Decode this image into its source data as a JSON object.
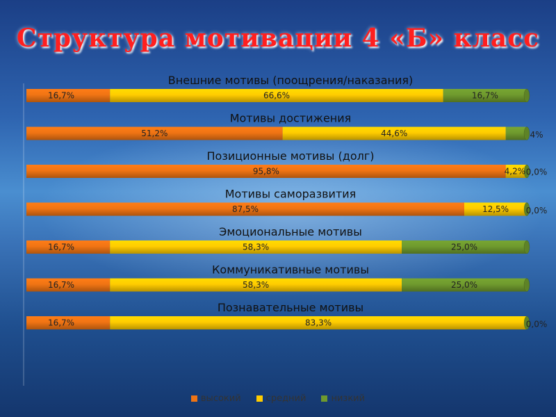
{
  "title": "Структура мотивации 4 «Б» класс",
  "colors": {
    "high": "#f07414",
    "mid": "#ffcc00",
    "low": "#6f9a2e"
  },
  "chart_data": {
    "type": "bar",
    "orientation": "horizontal",
    "stacked": true,
    "categories": [
      "Внешние мотивы (поощрения/наказания)",
      "Мотивы достижения",
      "Позиционные мотивы (долг)",
      "Мотивы саморазвития",
      "Эмоциональные мотивы",
      "Коммуникативные мотивы",
      "Познавательные мотивы"
    ],
    "series": [
      {
        "name": "высокий",
        "values": [
          16.7,
          51.2,
          95.8,
          87.5,
          16.7,
          16.7,
          16.7
        ],
        "labels": [
          "16,7%",
          "51,2%",
          "95,8%",
          "87,5%",
          "16,7%",
          "16,7%",
          "16,7%"
        ]
      },
      {
        "name": "средний",
        "values": [
          66.6,
          44.6,
          4.2,
          12.5,
          58.3,
          58.3,
          83.3
        ],
        "labels": [
          "66,6%",
          "44,6%",
          "4,2%",
          "12,5%",
          "58,3%",
          "58,3%",
          "83,3%"
        ]
      },
      {
        "name": "низкий",
        "values": [
          16.7,
          4.0,
          0.0,
          0.0,
          25.0,
          25.0,
          0.0
        ],
        "labels": [
          "16,7%",
          "4%",
          "0,0%",
          "0,0%",
          "25,0%",
          "25,0%",
          "0,0%"
        ]
      }
    ],
    "xlim": [
      0,
      100
    ],
    "legend": "bottom",
    "grid": false
  }
}
